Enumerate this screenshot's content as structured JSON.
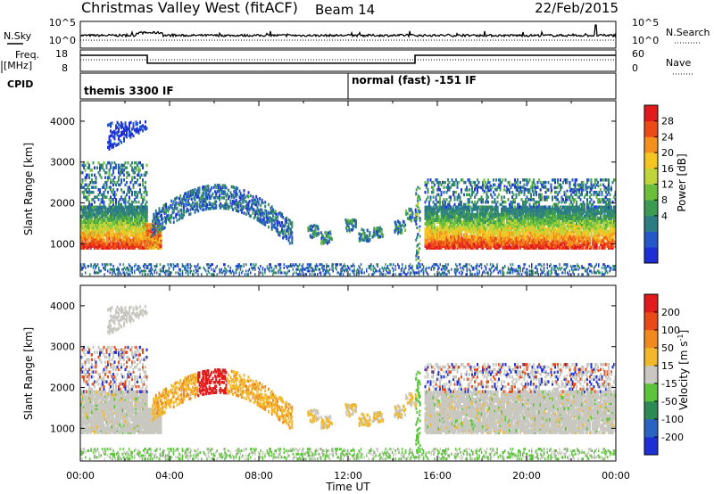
{
  "header": {
    "title": "Christmas Valley West (fitACF)",
    "beam": "Beam 14",
    "date": "22/Feb/2015"
  },
  "nsky_panel": {
    "left_label": "N.Sky",
    "left_ticks": [
      "10^5",
      "10^0"
    ],
    "right_ticks": [
      "10^5",
      "10^0"
    ],
    "right_label": "N.Search"
  },
  "freq_panel": {
    "left_label_1": "Freq.",
    "left_label_2": "[MHz]",
    "left_ticks": [
      "18",
      "8"
    ],
    "right_ticks": [
      "60",
      "0"
    ],
    "right_label": "Nave"
  },
  "cpid_panel": {
    "label": "CPID",
    "modes": [
      "themis 3300 IF",
      "normal (fast) -151 IF"
    ]
  },
  "chart_data": [
    {
      "type": "line",
      "name": "nsky-nsearch",
      "x_hours": [
        0,
        3,
        6,
        9,
        12,
        15,
        18,
        21,
        24
      ],
      "ylim_log": [
        0,
        5
      ]
    },
    {
      "type": "line",
      "name": "frequency",
      "ylabel": "Freq. [MHz]",
      "ylim": [
        8,
        18
      ],
      "segments": [
        {
          "start": 0.0,
          "end": 3.0,
          "value": 15.5
        },
        {
          "start": 3.0,
          "end": 15.0,
          "value": 11.8
        },
        {
          "start": 15.0,
          "end": 24.0,
          "value": 15.5
        }
      ]
    },
    {
      "type": "heatmap",
      "name": "power",
      "ylabel": "Slant Range [km]",
      "yticks": [
        "1000",
        "2000",
        "3000",
        "4000"
      ],
      "ylim": [
        200,
        4500
      ],
      "colorbar": {
        "label": "Power [dB]",
        "ticks": [
          "4",
          "8",
          "12",
          "16",
          "20",
          "24",
          "28"
        ],
        "colors": [
          "#1f2fd6",
          "#2458c9",
          "#2b7d83",
          "#3d9a52",
          "#6bbf3b",
          "#bfd53a",
          "#f5c622",
          "#f4911d",
          "#ec4b16",
          "#e11b1b"
        ]
      }
    },
    {
      "type": "heatmap",
      "name": "velocity",
      "ylabel": "Slant Range [km]",
      "yticks": [
        "1000",
        "2000",
        "3000",
        "4000"
      ],
      "ylim": [
        200,
        4500
      ],
      "colorbar": {
        "label_main": "Velocity",
        "label_unit": "[m s",
        "label_sup": "-1",
        "label_end": "]",
        "ticks": [
          "200",
          "100",
          "50",
          "15",
          "-15",
          "-50",
          "-100",
          "-200"
        ],
        "colors": [
          "#1f2fd6",
          "#2b63c2",
          "#2e8a55",
          "#5cc43a",
          "#c8c8c0",
          "#f2b72a",
          "#f08a1f",
          "#ea4a18",
          "#e11b1b"
        ]
      }
    }
  ],
  "time_axis": {
    "ticks": [
      "00:00",
      "04:00",
      "08:00",
      "12:00",
      "16:00",
      "20:00",
      "00:00"
    ],
    "label": "Time UT"
  }
}
